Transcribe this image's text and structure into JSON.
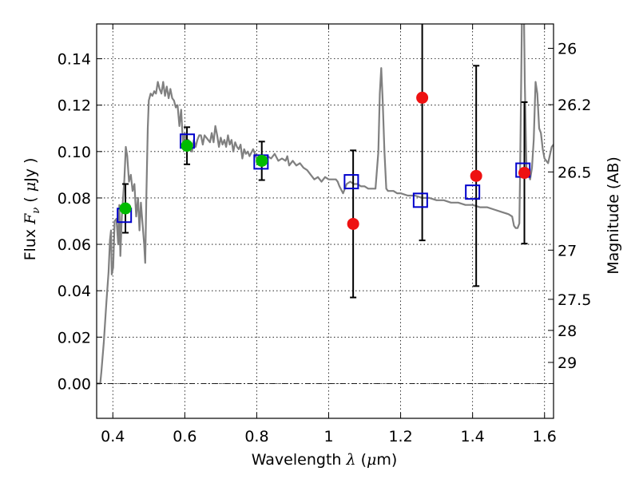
{
  "chart_data": {
    "type": "scatter",
    "x_axis": {
      "label_prefix": "Wavelength",
      "label_symbol": "λ",
      "label_unit_open": " (",
      "label_unit_mu": "μ",
      "label_unit_rest": "m)",
      "range": [
        0.355,
        1.625
      ],
      "ticks": [
        0.4,
        0.6,
        0.8,
        1.0,
        1.2,
        1.4,
        1.6
      ],
      "tick_labels": [
        "0.4",
        "0.6",
        "0.8",
        "1",
        "1.2",
        "1.4",
        "1.6"
      ]
    },
    "y_axis": {
      "label_prefix": "Flux",
      "label_symbol": "F",
      "label_subscript": "ν",
      "label_unit_open": " ( ",
      "label_unit_mu": "μ",
      "label_unit_rest": "Jy )",
      "range": [
        -0.015,
        0.155
      ],
      "ticks": [
        0.0,
        0.02,
        0.04,
        0.06,
        0.08,
        0.1,
        0.12,
        0.14
      ],
      "tick_labels": [
        "0.00",
        "0.02",
        "0.04",
        "0.06",
        "0.08",
        "0.10",
        "0.12",
        "0.14"
      ]
    },
    "y2_axis": {
      "label": "Magnitude (AB)",
      "ticks": [
        {
          "label": "26",
          "flux": 0.1445
        },
        {
          "label": "26.2",
          "flux": 0.1202
        },
        {
          "label": "26.5",
          "flux": 0.0912
        },
        {
          "label": "27",
          "flux": 0.0575
        },
        {
          "label": "27.5",
          "flux": 0.0363
        },
        {
          "label": "28",
          "flux": 0.0229
        },
        {
          "label": "29",
          "flux": 0.0091
        }
      ]
    },
    "grid": true,
    "zero_line": true,
    "colors": {
      "sed": "#808080",
      "model": "#0000cc",
      "detected": "#00bb00",
      "low_sn": "#ee1111",
      "errorbar": "#000000"
    },
    "observed_points": [
      {
        "x": 0.435,
        "y": 0.0755,
        "err": 0.0105,
        "color": "green"
      },
      {
        "x": 0.606,
        "y": 0.1025,
        "err": 0.008,
        "color": "green"
      },
      {
        "x": 0.814,
        "y": 0.096,
        "err": 0.0083,
        "color": "green"
      },
      {
        "x": 1.068,
        "y": 0.0688,
        "err": 0.0317,
        "color": "red"
      },
      {
        "x": 1.26,
        "y": 0.1232,
        "err": 0.0615,
        "color": "red"
      },
      {
        "x": 1.41,
        "y": 0.0895,
        "err": 0.0475,
        "color": "red"
      },
      {
        "x": 1.544,
        "y": 0.0908,
        "err": 0.0305,
        "color": "red"
      }
    ],
    "model_points": [
      {
        "x": 0.432,
        "y": 0.0725
      },
      {
        "x": 0.607,
        "y": 0.1045
      },
      {
        "x": 0.812,
        "y": 0.0955
      },
      {
        "x": 1.063,
        "y": 0.087
      },
      {
        "x": 1.255,
        "y": 0.079
      },
      {
        "x": 1.4,
        "y": 0.0825
      },
      {
        "x": 1.54,
        "y": 0.092
      }
    ],
    "sed_curve": [
      [
        0.355,
        0.0
      ],
      [
        0.365,
        0.0
      ],
      [
        0.368,
        0.005
      ],
      [
        0.375,
        0.018
      ],
      [
        0.382,
        0.035
      ],
      [
        0.388,
        0.048
      ],
      [
        0.392,
        0.062
      ],
      [
        0.395,
        0.066
      ],
      [
        0.397,
        0.047
      ],
      [
        0.401,
        0.05
      ],
      [
        0.405,
        0.07
      ],
      [
        0.41,
        0.071
      ],
      [
        0.415,
        0.06
      ],
      [
        0.418,
        0.077
      ],
      [
        0.421,
        0.055
      ],
      [
        0.425,
        0.072
      ],
      [
        0.428,
        0.079
      ],
      [
        0.432,
        0.088
      ],
      [
        0.436,
        0.102
      ],
      [
        0.44,
        0.098
      ],
      [
        0.445,
        0.087
      ],
      [
        0.45,
        0.09
      ],
      [
        0.455,
        0.083
      ],
      [
        0.46,
        0.086
      ],
      [
        0.465,
        0.072
      ],
      [
        0.47,
        0.08
      ],
      [
        0.474,
        0.066
      ],
      [
        0.478,
        0.078
      ],
      [
        0.482,
        0.07
      ],
      [
        0.487,
        0.06
      ],
      [
        0.49,
        0.052
      ],
      [
        0.493,
        0.08
      ],
      [
        0.497,
        0.11
      ],
      [
        0.5,
        0.122
      ],
      [
        0.505,
        0.125
      ],
      [
        0.51,
        0.124
      ],
      [
        0.515,
        0.126
      ],
      [
        0.52,
        0.125
      ],
      [
        0.525,
        0.13
      ],
      [
        0.53,
        0.127
      ],
      [
        0.535,
        0.125
      ],
      [
        0.54,
        0.13
      ],
      [
        0.545,
        0.124
      ],
      [
        0.55,
        0.128
      ],
      [
        0.555,
        0.123
      ],
      [
        0.56,
        0.127
      ],
      [
        0.565,
        0.123
      ],
      [
        0.57,
        0.122
      ],
      [
        0.575,
        0.119
      ],
      [
        0.58,
        0.12
      ],
      [
        0.585,
        0.111
      ],
      [
        0.59,
        0.118
      ],
      [
        0.595,
        0.103
      ],
      [
        0.6,
        0.108
      ],
      [
        0.605,
        0.104
      ],
      [
        0.61,
        0.105
      ],
      [
        0.615,
        0.101
      ],
      [
        0.62,
        0.1
      ],
      [
        0.625,
        0.105
      ],
      [
        0.63,
        0.102
      ],
      [
        0.635,
        0.105
      ],
      [
        0.64,
        0.107
      ],
      [
        0.645,
        0.107
      ],
      [
        0.65,
        0.103
      ],
      [
        0.655,
        0.107
      ],
      [
        0.66,
        0.106
      ],
      [
        0.665,
        0.105
      ],
      [
        0.67,
        0.104
      ],
      [
        0.675,
        0.108
      ],
      [
        0.68,
        0.104
      ],
      [
        0.685,
        0.111
      ],
      [
        0.69,
        0.107
      ],
      [
        0.695,
        0.102
      ],
      [
        0.7,
        0.106
      ],
      [
        0.705,
        0.103
      ],
      [
        0.71,
        0.105
      ],
      [
        0.715,
        0.102
      ],
      [
        0.72,
        0.107
      ],
      [
        0.725,
        0.103
      ],
      [
        0.73,
        0.105
      ],
      [
        0.735,
        0.1
      ],
      [
        0.74,
        0.104
      ],
      [
        0.745,
        0.102
      ],
      [
        0.75,
        0.101
      ],
      [
        0.755,
        0.103
      ],
      [
        0.76,
        0.097
      ],
      [
        0.765,
        0.101
      ],
      [
        0.77,
        0.099
      ],
      [
        0.775,
        0.1
      ],
      [
        0.78,
        0.098
      ],
      [
        0.79,
        0.101
      ],
      [
        0.8,
        0.097
      ],
      [
        0.81,
        0.097
      ],
      [
        0.82,
        0.095
      ],
      [
        0.83,
        0.098
      ],
      [
        0.84,
        0.097
      ],
      [
        0.85,
        0.099
      ],
      [
        0.86,
        0.096
      ],
      [
        0.87,
        0.097
      ],
      [
        0.88,
        0.096
      ],
      [
        0.885,
        0.098
      ],
      [
        0.89,
        0.094
      ],
      [
        0.9,
        0.096
      ],
      [
        0.91,
        0.094
      ],
      [
        0.92,
        0.095
      ],
      [
        0.93,
        0.093
      ],
      [
        0.94,
        0.092
      ],
      [
        0.95,
        0.09
      ],
      [
        0.96,
        0.088
      ],
      [
        0.97,
        0.089
      ],
      [
        0.98,
        0.087
      ],
      [
        0.99,
        0.089
      ],
      [
        1.0,
        0.088
      ],
      [
        1.01,
        0.088
      ],
      [
        1.02,
        0.088
      ],
      [
        1.025,
        0.087
      ],
      [
        1.03,
        0.085
      ],
      [
        1.04,
        0.082
      ],
      [
        1.05,
        0.086
      ],
      [
        1.06,
        0.087
      ],
      [
        1.07,
        0.086
      ],
      [
        1.08,
        0.086
      ],
      [
        1.09,
        0.085
      ],
      [
        1.1,
        0.085
      ],
      [
        1.11,
        0.084
      ],
      [
        1.12,
        0.084
      ],
      [
        1.13,
        0.084
      ],
      [
        1.138,
        0.1
      ],
      [
        1.142,
        0.125
      ],
      [
        1.146,
        0.136
      ],
      [
        1.15,
        0.122
      ],
      [
        1.155,
        0.1
      ],
      [
        1.16,
        0.084
      ],
      [
        1.165,
        0.083
      ],
      [
        1.175,
        0.083
      ],
      [
        1.18,
        0.083
      ],
      [
        1.19,
        0.082
      ],
      [
        1.2,
        0.082
      ],
      [
        1.22,
        0.081
      ],
      [
        1.24,
        0.081
      ],
      [
        1.26,
        0.08
      ],
      [
        1.28,
        0.08
      ],
      [
        1.3,
        0.079
      ],
      [
        1.32,
        0.079
      ],
      [
        1.34,
        0.078
      ],
      [
        1.36,
        0.078
      ],
      [
        1.38,
        0.077
      ],
      [
        1.4,
        0.077
      ],
      [
        1.42,
        0.076
      ],
      [
        1.44,
        0.076
      ],
      [
        1.46,
        0.075
      ],
      [
        1.48,
        0.074
      ],
      [
        1.5,
        0.073
      ],
      [
        1.51,
        0.072
      ],
      [
        1.515,
        0.068
      ],
      [
        1.52,
        0.067
      ],
      [
        1.525,
        0.067
      ],
      [
        1.53,
        0.069
      ],
      [
        1.532,
        0.09
      ],
      [
        1.535,
        0.13
      ],
      [
        1.538,
        0.17
      ],
      [
        1.542,
        0.17
      ],
      [
        1.545,
        0.13
      ],
      [
        1.55,
        0.092
      ],
      [
        1.555,
        0.09
      ],
      [
        1.56,
        0.088
      ],
      [
        1.565,
        0.093
      ],
      [
        1.57,
        0.105
      ],
      [
        1.575,
        0.13
      ],
      [
        1.58,
        0.125
      ],
      [
        1.585,
        0.11
      ],
      [
        1.59,
        0.108
      ],
      [
        1.595,
        0.101
      ],
      [
        1.6,
        0.097
      ],
      [
        1.61,
        0.095
      ],
      [
        1.62,
        0.102
      ],
      [
        1.625,
        0.103
      ]
    ]
  }
}
